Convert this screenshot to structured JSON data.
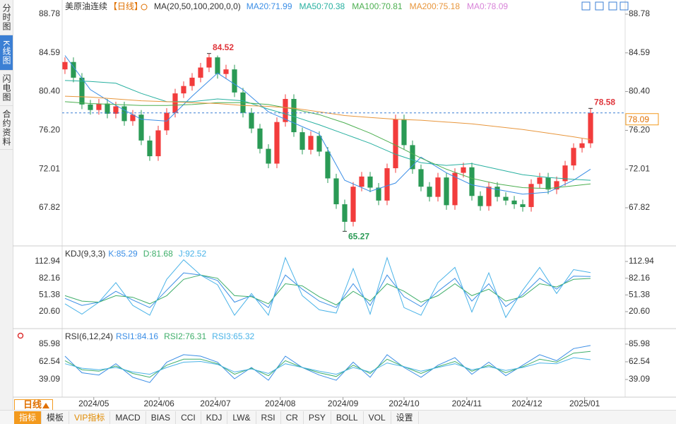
{
  "sidebar": {
    "tabs": [
      "分时图",
      "K线图",
      "闪电图",
      "合约资料"
    ]
  },
  "legend": {
    "symbol": "美原油连续",
    "period": "【日线】",
    "ma_label": "MA(20,50,100,200,0,0)"
  },
  "toolbar": {
    "period": "日线",
    "tabs": [
      "指标",
      "模板",
      "VIP指标",
      "MACD",
      "BIAS",
      "CCI",
      "KDJ",
      "LW&",
      "RSI",
      "CR",
      "PSY",
      "BOLL",
      "VOL",
      "设置"
    ]
  },
  "chart_data": [
    {
      "type": "candlestick",
      "up_color": "#f23c3c",
      "down_color": "#2a9a55",
      "xlim": [
        -0.33,
        66.08
      ],
      "xticks": [
        {
          "value": 3.4,
          "label": "2024/05"
        },
        {
          "value": 11.1,
          "label": "2024/06"
        },
        {
          "value": 17.75,
          "label": "2024/07"
        },
        {
          "value": 25.4,
          "label": "2024/08"
        },
        {
          "value": 32.8,
          "label": "2024/09"
        },
        {
          "value": 40,
          "label": "2024/10"
        },
        {
          "value": 47.4,
          "label": "2024/11"
        },
        {
          "value": 54.5,
          "label": "2024/12"
        },
        {
          "value": 61.3,
          "label": "2025/01"
        }
      ],
      "ylim": [
        63.69,
        90.31
      ],
      "yticks": [
        88.78,
        84.59,
        {
          "value": 80.4,
          "label": "80.40"
        },
        {
          "value": 76.2,
          "label": "76.20"
        },
        72.01,
        67.82
      ],
      "open": [
        82.8,
        83.6,
        81.9,
        79.0,
        78.4,
        79.1,
        78.0,
        78.8,
        77.2,
        77.9,
        75.1,
        73.4,
        76.2,
        78.1,
        80.2,
        81.0,
        81.9,
        83.0,
        84.1,
        82.3,
        82.8,
        80.3,
        78.1,
        76.4,
        74.2,
        72.6,
        77.1,
        79.6,
        76.0,
        74.1,
        75.6,
        73.9,
        71.0,
        68.2,
        66.3,
        70.1,
        71.2,
        70.0,
        68.6,
        72.1,
        77.4,
        74.6,
        72.0,
        70.1,
        69.0,
        71.1,
        68.1,
        71.6,
        72.2,
        69.1,
        68.0,
        70.1,
        69.0,
        68.6,
        68.2,
        67.9,
        70.4,
        71.1,
        69.8,
        70.7,
        72.4,
        74.3,
        74.8
      ],
      "high": [
        84.1,
        84.1,
        82.4,
        79.5,
        79.6,
        79.6,
        79.3,
        79.3,
        78.4,
        78.4,
        75.6,
        76.7,
        78.6,
        80.7,
        81.5,
        82.4,
        83.5,
        84.52,
        84.3,
        83.3,
        83.3,
        80.8,
        78.6,
        76.9,
        74.7,
        77.6,
        80.1,
        80.1,
        76.5,
        76.1,
        76.1,
        74.4,
        71.5,
        68.7,
        70.6,
        71.7,
        71.7,
        70.5,
        72.6,
        77.9,
        77.9,
        75.1,
        72.5,
        70.6,
        71.6,
        71.6,
        72.1,
        72.7,
        72.7,
        69.6,
        70.6,
        70.6,
        69.5,
        69.1,
        68.7,
        70.9,
        71.6,
        71.6,
        71.2,
        72.9,
        74.8,
        75.3,
        78.58
      ],
      "low": [
        82.3,
        81.4,
        78.5,
        77.9,
        77.9,
        77.5,
        77.5,
        76.7,
        76.7,
        74.6,
        72.9,
        72.9,
        75.7,
        77.6,
        79.7,
        80.5,
        81.4,
        82.5,
        81.8,
        81.8,
        79.8,
        77.6,
        75.9,
        73.7,
        72.1,
        72.1,
        76.6,
        75.5,
        73.6,
        73.6,
        73.4,
        70.5,
        67.7,
        65.27,
        65.8,
        69.6,
        69.5,
        68.1,
        68.1,
        71.6,
        74.1,
        71.5,
        69.6,
        68.5,
        68.5,
        67.6,
        67.6,
        71.1,
        68.6,
        67.5,
        67.5,
        68.5,
        68.1,
        67.7,
        67.4,
        67.4,
        69.9,
        69.3,
        69.3,
        70.2,
        71.9,
        73.8,
        74.3
      ],
      "close": [
        83.6,
        81.9,
        79.0,
        78.4,
        79.1,
        78.0,
        78.8,
        77.2,
        77.9,
        75.1,
        73.4,
        76.2,
        78.1,
        80.2,
        81.0,
        81.9,
        83.0,
        84.1,
        82.3,
        82.8,
        80.3,
        78.1,
        76.4,
        74.2,
        72.6,
        77.1,
        79.6,
        76.0,
        74.1,
        75.6,
        73.9,
        71.0,
        68.2,
        66.3,
        70.1,
        71.2,
        70.0,
        68.6,
        72.1,
        77.4,
        74.6,
        72.0,
        70.1,
        69.0,
        71.1,
        68.1,
        71.6,
        72.2,
        69.1,
        68.0,
        70.1,
        69.0,
        68.6,
        68.2,
        67.9,
        70.4,
        71.1,
        69.8,
        70.7,
        72.4,
        74.3,
        74.8,
        78.09
      ],
      "ma_x": [
        0,
        3,
        6,
        9,
        12,
        15,
        18,
        21,
        24,
        27,
        30,
        33,
        36,
        39,
        42,
        45,
        48,
        51,
        54,
        57,
        60,
        62
      ],
      "series": [
        {
          "name": "MA20:71.99",
          "color": "#3b8ee6",
          "values": [
            84.3,
            80.6,
            78.9,
            77.4,
            77.2,
            79.9,
            82.4,
            80.6,
            78.2,
            77.0,
            75.8,
            70.8,
            69.6,
            70.5,
            73.3,
            71.6,
            70.3,
            69.8,
            69.3,
            69.5,
            70.8,
            72.0
          ]
        },
        {
          "name": "MA50:70.38",
          "color": "#28b0a0",
          "values": [
            81.6,
            81.5,
            81.3,
            80.2,
            79.3,
            79.3,
            79.6,
            79.4,
            78.5,
            77.7,
            76.8,
            75.8,
            74.8,
            73.6,
            72.7,
            72.4,
            72.6,
            72.0,
            71.4,
            71.1,
            70.9,
            70.8
          ]
        },
        {
          "name": "MA100:70.81",
          "color": "#4caf50",
          "values": [
            79.3,
            79.1,
            79.0,
            78.9,
            78.9,
            79.0,
            79.2,
            79.2,
            79.0,
            78.5,
            77.9,
            77.0,
            75.9,
            74.6,
            73.2,
            72.0,
            71.0,
            70.4,
            70.0,
            69.9,
            70.2,
            70.4
          ]
        },
        {
          "name": "MA200:75.18",
          "color": "#e8963c",
          "values": [
            79.9,
            79.8,
            79.6,
            79.4,
            79.3,
            79.2,
            79.1,
            78.9,
            78.8,
            78.6,
            78.2,
            77.8,
            77.6,
            77.4,
            77.3,
            77.1,
            76.9,
            76.6,
            76.3,
            75.9,
            75.5,
            75.2
          ]
        },
        {
          "name": "MA0:78.09",
          "color": "#d883d8",
          "values": []
        }
      ]
    },
    {
      "type": "line",
      "title": "KDJ(9,3,3)",
      "ylim": [
        -10.6,
        138.95
      ],
      "yticks": [
        112.94,
        82.16,
        51.38,
        {
          "value": 20.6,
          "label": "20.60"
        }
      ],
      "x": [
        0,
        2,
        4,
        6,
        8,
        10,
        12,
        14,
        16,
        18,
        20,
        22,
        24,
        26,
        28,
        30,
        32,
        34,
        36,
        38,
        40,
        42,
        44,
        46,
        48,
        50,
        52,
        54,
        56,
        58,
        60,
        62
      ],
      "series": [
        {
          "name": "K:85.29",
          "color": "#3b8ee6",
          "values": [
            45,
            32,
            38,
            58,
            42,
            28,
            60,
            92,
            88,
            78,
            38,
            50,
            28,
            88,
            62,
            40,
            28,
            72,
            32,
            88,
            48,
            30,
            58,
            82,
            40,
            72,
            30,
            52,
            82,
            62,
            86,
            85.29
          ]
        },
        {
          "name": "D:81.68",
          "color": "#3fae6a",
          "values": [
            50,
            40,
            38,
            50,
            47,
            35,
            50,
            80,
            88,
            82,
            50,
            48,
            35,
            72,
            68,
            48,
            33,
            58,
            40,
            72,
            58,
            38,
            50,
            72,
            50,
            62,
            40,
            48,
            72,
            66,
            80,
            81.68
          ]
        },
        {
          "name": "J:92.52",
          "color": "#4ab3e8",
          "values": [
            35,
            16,
            38,
            74,
            32,
            14,
            80,
            116,
            88,
            70,
            14,
            54,
            14,
            120,
            50,
            24,
            18,
            100,
            16,
            120,
            28,
            14,
            74,
            102,
            20,
            92,
            10,
            60,
            102,
            54,
            98,
            92.52
          ]
        }
      ]
    },
    {
      "type": "line",
      "title": "RSI(6,12,24)",
      "ylim": [
        15.64,
        104.7
      ],
      "yticks": [
        85.98,
        62.54,
        39.09
      ],
      "x": [
        0,
        2,
        4,
        6,
        8,
        10,
        12,
        14,
        16,
        18,
        20,
        22,
        24,
        26,
        28,
        30,
        32,
        34,
        36,
        38,
        40,
        42,
        44,
        46,
        48,
        50,
        52,
        54,
        56,
        58,
        60,
        62
      ],
      "series": [
        {
          "name": "RSI1:84.16",
          "color": "#3b8ee6",
          "values": [
            70,
            48,
            45,
            60,
            42,
            35,
            62,
            72,
            70,
            62,
            40,
            55,
            38,
            70,
            55,
            45,
            38,
            62,
            42,
            72,
            55,
            42,
            58,
            68,
            46,
            62,
            44,
            58,
            72,
            64,
            80,
            84.16
          ]
        },
        {
          "name": "RSI2:76.31",
          "color": "#3fae6a",
          "values": [
            64,
            52,
            50,
            57,
            47,
            42,
            58,
            66,
            66,
            60,
            46,
            54,
            44,
            64,
            55,
            48,
            43,
            58,
            47,
            66,
            56,
            47,
            56,
            63,
            50,
            58,
            48,
            56,
            66,
            62,
            74,
            76.31
          ]
        },
        {
          "name": "RSI3:65.32",
          "color": "#4ab3e8",
          "values": [
            60,
            54,
            52,
            55,
            49,
            46,
            55,
            62,
            63,
            59,
            49,
            53,
            47,
            60,
            55,
            50,
            46,
            55,
            49,
            61,
            56,
            50,
            55,
            60,
            52,
            56,
            51,
            55,
            61,
            60,
            68,
            65.32
          ]
        }
      ]
    }
  ]
}
